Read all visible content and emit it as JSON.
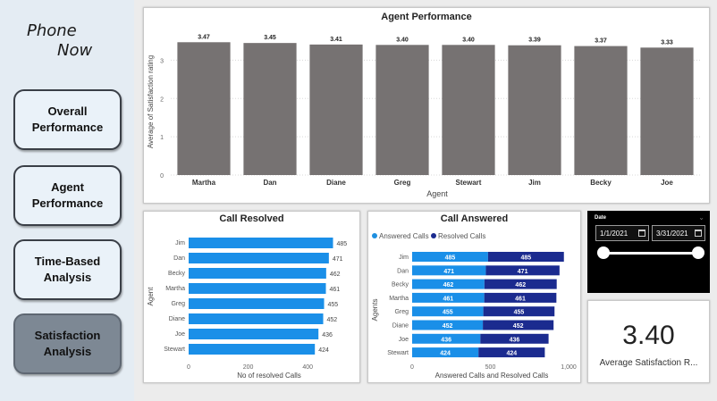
{
  "logo": {
    "line1": "Phone",
    "line2": "Now"
  },
  "nav": [
    {
      "label1": "Overall",
      "label2": "Performance"
    },
    {
      "label1": "Agent",
      "label2": "Performance"
    },
    {
      "label1": "Time-Based",
      "label2": "Analysis"
    },
    {
      "label1": "Satisfaction",
      "label2": "Analysis"
    }
  ],
  "agent_performance": {
    "title": "Agent Performance",
    "xlabel": "Agent",
    "ylabel": "Average of Satisfaction rating"
  },
  "call_resolved": {
    "title": "Call Resolved",
    "xlabel": "No of resolved Calls",
    "ylabel": "Agent"
  },
  "call_answered": {
    "title": "Call Answered",
    "legend_answered": "Answered Calls",
    "legend_resolved": "Resolved Calls",
    "xlabel": "Answered Calls and Resolved Calls",
    "ylabel": "Agents"
  },
  "date_filter": {
    "label": "Date",
    "start": "1/1/2021",
    "end": "3/31/2021",
    "slider_start_fraction": 0,
    "slider_end_fraction": 1
  },
  "kpi": {
    "value": "3.40",
    "label": "Average Satisfaction R..."
  },
  "colors": {
    "bar_gray": "#767272",
    "bar_blue": "#1a8fe8",
    "bar_navy": "#1b2b8f",
    "legend_answered": "#1e8fe0",
    "legend_resolved": "#1b2b8f"
  },
  "chart_data": [
    {
      "type": "bar",
      "title": "Agent Performance",
      "xlabel": "Agent",
      "ylabel": "Average of Satisfaction rating",
      "categories": [
        "Martha",
        "Dan",
        "Diane",
        "Greg",
        "Stewart",
        "Jim",
        "Becky",
        "Joe"
      ],
      "values": [
        3.47,
        3.45,
        3.41,
        3.4,
        3.4,
        3.39,
        3.37,
        3.33
      ],
      "yticks": [
        "0",
        "1",
        "2",
        "3"
      ],
      "ylim": [
        0,
        3.5
      ],
      "grid": true
    },
    {
      "type": "bar",
      "orientation": "horizontal",
      "title": "Call Resolved",
      "xlabel": "No of resolved Calls",
      "ylabel": "Agent",
      "categories": [
        "Jim",
        "Dan",
        "Becky",
        "Martha",
        "Greg",
        "Diane",
        "Joe",
        "Stewart"
      ],
      "values": [
        485,
        471,
        462,
        461,
        455,
        452,
        436,
        424
      ],
      "xticks": [
        "0",
        "200",
        "400"
      ],
      "xlim": [
        0,
        500
      ]
    },
    {
      "type": "bar",
      "orientation": "horizontal",
      "stacked": true,
      "title": "Call Answered",
      "xlabel": "Answered Calls and Resolved Calls",
      "ylabel": "Agents",
      "categories": [
        "Jim",
        "Dan",
        "Becky",
        "Martha",
        "Greg",
        "Diane",
        "Joe",
        "Stewart"
      ],
      "series": [
        {
          "name": "Answered Calls",
          "values": [
            485,
            471,
            462,
            461,
            455,
            452,
            436,
            424
          ]
        },
        {
          "name": "Resolved Calls",
          "values": [
            485,
            471,
            462,
            461,
            455,
            452,
            436,
            424
          ]
        }
      ],
      "xticks": [
        "0",
        "500",
        "1,000"
      ],
      "xlim": [
        0,
        1000
      ],
      "legend": "top-left"
    }
  ]
}
